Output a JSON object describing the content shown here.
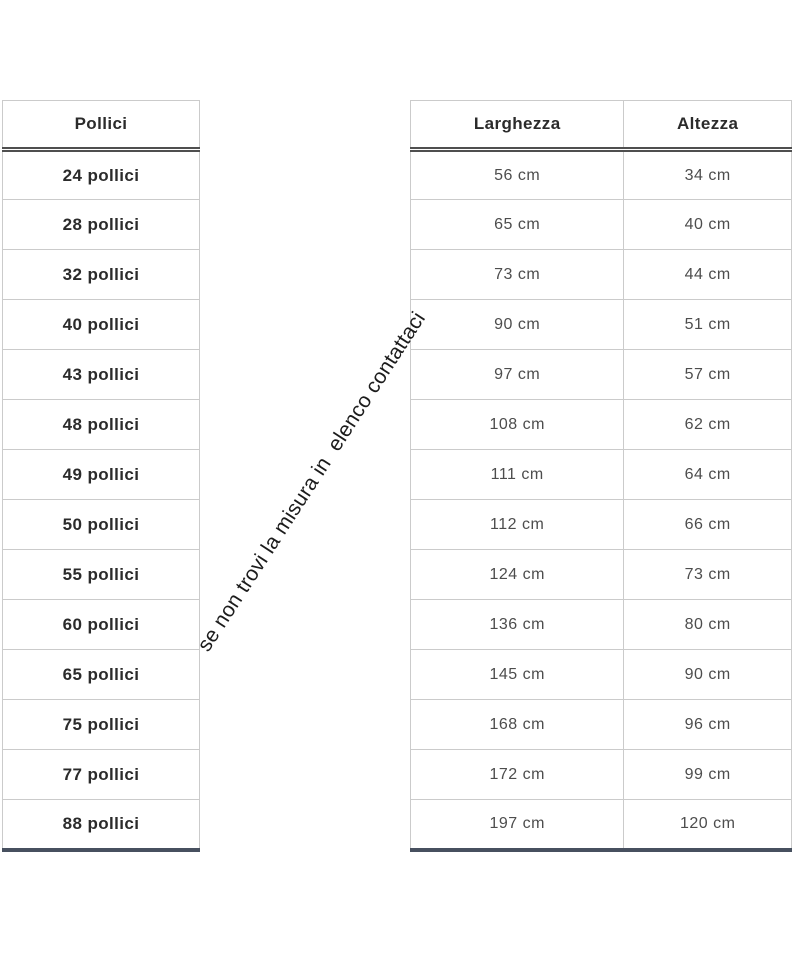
{
  "colors": {
    "background": "#ffffff",
    "border_light": "#cbcbcb",
    "header_divider": "#4f4f4f",
    "bottom_border": "#47505f",
    "header_text": "#2b2b2b",
    "inches_text": "#2b2b2b",
    "dimension_text": "#4d4d4d",
    "note_text": "#1c1c1c"
  },
  "note": {
    "text": "se non trovi la misura in  elenco contattaci"
  },
  "size_table": {
    "inches_header": "Pollici",
    "width_header": "Larghezza",
    "height_header": "Altezza",
    "rows": [
      {
        "inches": "24 pollici",
        "width": "56 cm",
        "height": "34 cm"
      },
      {
        "inches": "28 pollici",
        "width": "65 cm",
        "height": "40 cm"
      },
      {
        "inches": "32 pollici",
        "width": "73 cm",
        "height": "44 cm"
      },
      {
        "inches": "40 pollici",
        "width": "90 cm",
        "height": "51 cm"
      },
      {
        "inches": "43 pollici",
        "width": "97 cm",
        "height": "57 cm"
      },
      {
        "inches": "48 pollici",
        "width": "108 cm",
        "height": "62 cm"
      },
      {
        "inches": "49 pollici",
        "width": "111 cm",
        "height": "64 cm"
      },
      {
        "inches": "50 pollici",
        "width": "112 cm",
        "height": "66 cm"
      },
      {
        "inches": "55 pollici",
        "width": "124 cm",
        "height": "73 cm"
      },
      {
        "inches": "60 pollici",
        "width": "136 cm",
        "height": "80 cm"
      },
      {
        "inches": "65 pollici",
        "width": "145 cm",
        "height": "90 cm"
      },
      {
        "inches": "75 pollici",
        "width": "168 cm",
        "height": "96 cm"
      },
      {
        "inches": "77 pollici",
        "width": "172 cm",
        "height": "99 cm"
      },
      {
        "inches": "88 pollici",
        "width": "197 cm",
        "height": "120 cm"
      }
    ]
  },
  "chart_data": {
    "type": "table",
    "title": "",
    "annotation": "se non trovi la misura in  elenco contattaci",
    "tables": [
      {
        "columns": [
          "Pollici"
        ],
        "rows": [
          [
            "24 pollici"
          ],
          [
            "28 pollici"
          ],
          [
            "32 pollici"
          ],
          [
            "40 pollici"
          ],
          [
            "43 pollici"
          ],
          [
            "48 pollici"
          ],
          [
            "49 pollici"
          ],
          [
            "50 pollici"
          ],
          [
            "55 pollici"
          ],
          [
            "60 pollici"
          ],
          [
            "65 pollici"
          ],
          [
            "75 pollici"
          ],
          [
            "77 pollici"
          ],
          [
            "88 pollici"
          ]
        ]
      },
      {
        "columns": [
          "Larghezza",
          "Altezza"
        ],
        "rows": [
          [
            "56 cm",
            "34 cm"
          ],
          [
            "65 cm",
            "40 cm"
          ],
          [
            "73 cm",
            "44 cm"
          ],
          [
            "90 cm",
            "51 cm"
          ],
          [
            "97 cm",
            "57 cm"
          ],
          [
            "108 cm",
            "62 cm"
          ],
          [
            "111 cm",
            "64 cm"
          ],
          [
            "112 cm",
            "66 cm"
          ],
          [
            "124 cm",
            "73 cm"
          ],
          [
            "136 cm",
            "80 cm"
          ],
          [
            "145 cm",
            "90 cm"
          ],
          [
            "168 cm",
            "96 cm"
          ],
          [
            "172 cm",
            "99 cm"
          ],
          [
            "197 cm",
            "120 cm"
          ]
        ]
      }
    ]
  }
}
